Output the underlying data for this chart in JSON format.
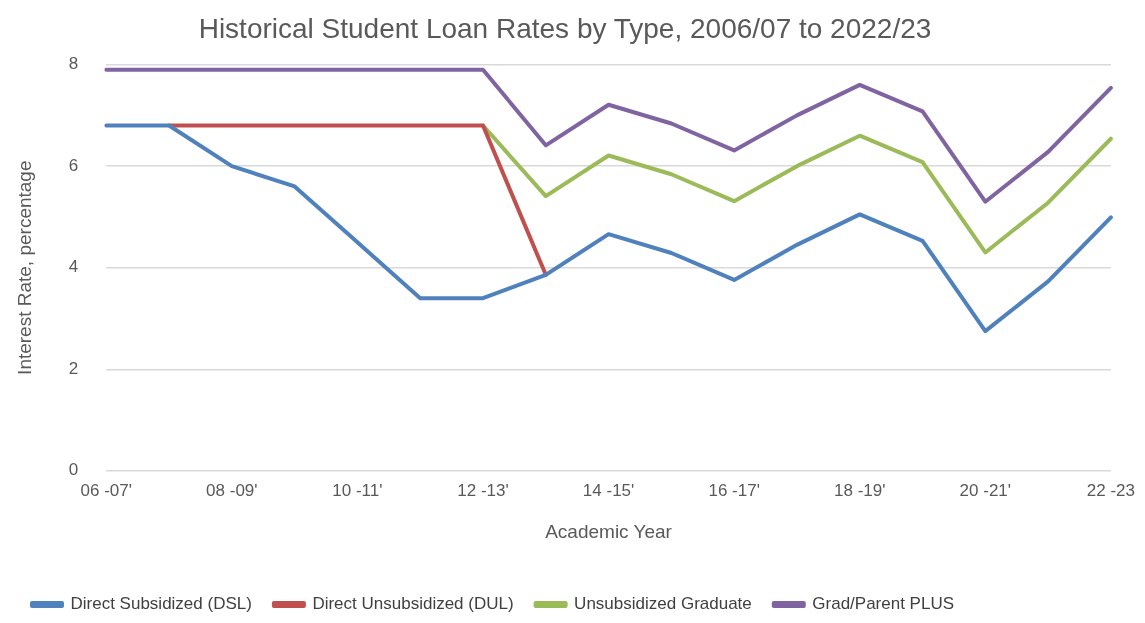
{
  "chart_data": {
    "type": "line",
    "title": "Historical Student Loan Rates by Type, 2006/07 to 2022/23",
    "xlabel": "Academic Year",
    "ylabel": "Interest Rate, percentage",
    "categories": [
      "06 -07'",
      null,
      "08 -09'",
      null,
      "10 -11'",
      null,
      "12 -13'",
      null,
      "14 -15'",
      null,
      "16 -17'",
      null,
      "18 -19'",
      null,
      "20 -21'",
      null,
      "22 -23"
    ],
    "series": [
      {
        "name": "Direct Subsidized (DSL)",
        "color": "#4f81bd",
        "values": [
          6.8,
          6.8,
          6.0,
          5.6,
          4.5,
          3.4,
          3.4,
          3.86,
          4.66,
          4.29,
          3.76,
          4.45,
          5.05,
          4.53,
          2.75,
          3.73,
          4.99
        ]
      },
      {
        "name": "Direct Unsubsidized (DUL)",
        "color": "#c0504d",
        "values": [
          null,
          6.8,
          6.8,
          6.8,
          6.8,
          6.8,
          6.8,
          3.86,
          null,
          null,
          null,
          null,
          null,
          null,
          null,
          null,
          null
        ]
      },
      {
        "name": "Unsubsidized Graduate",
        "color": "#9bbb59",
        "values": [
          null,
          null,
          null,
          null,
          null,
          null,
          6.8,
          5.41,
          6.21,
          5.84,
          5.31,
          6.0,
          6.6,
          6.08,
          4.3,
          5.28,
          6.54
        ]
      },
      {
        "name": "Grad/Parent PLUS",
        "color": "#8064a2",
        "values": [
          7.9,
          7.9,
          7.9,
          7.9,
          7.9,
          7.9,
          7.9,
          6.41,
          7.21,
          6.84,
          6.31,
          7.0,
          7.6,
          7.08,
          5.3,
          6.28,
          7.54
        ]
      }
    ],
    "ylim": [
      0,
      8
    ],
    "yticks": [
      0,
      2,
      4,
      6,
      8
    ],
    "grid": "y",
    "legend": "bottom",
    "marker": "none",
    "line_style": "solid"
  }
}
